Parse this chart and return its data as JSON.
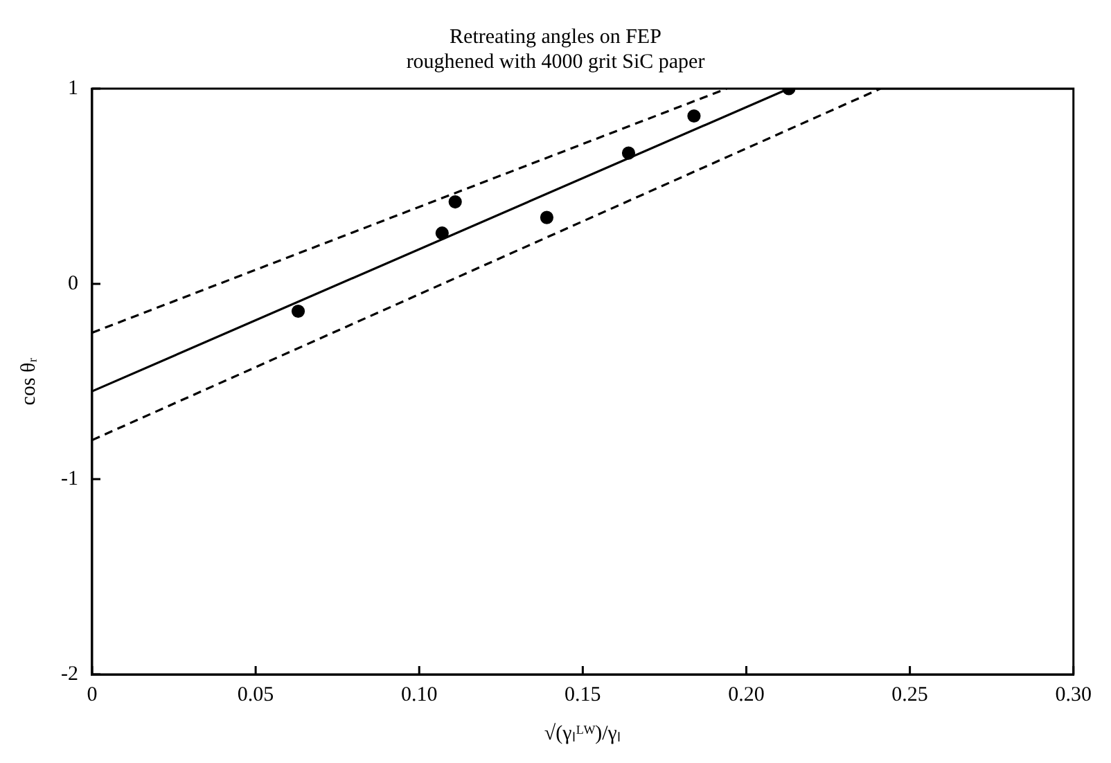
{
  "chart_data": {
    "type": "scatter",
    "title": "Retreating angles on FEP\nroughened with 4000 grit SiC paper",
    "xlabel": "√(γₗᴸᵂ)/γₗ",
    "ylabel": "cos θᵣ",
    "xlim": [
      0,
      0.3
    ],
    "xticks": [
      0,
      0.05,
      {
        "value": 0.1,
        "label": "0.10"
      },
      0.15,
      {
        "value": 0.2,
        "label": "0.20"
      },
      0.25,
      {
        "value": 0.3,
        "label": "0.30"
      }
    ],
    "ylim": [
      -2,
      1
    ],
    "yticks": [
      -2,
      -1,
      0,
      1
    ],
    "grid": false,
    "legend": false,
    "series": [
      {
        "color": "#000000",
        "marker": "circle",
        "x": [
          0.063,
          0.107,
          0.111,
          0.139,
          0.164,
          0.184,
          0.213
        ],
        "values": [
          -0.14,
          0.26,
          0.42,
          0.34,
          0.67,
          0.86,
          1.0
        ]
      },
      {
        "type": "line",
        "color": "#000000",
        "marker": "none",
        "line_style": "solid",
        "x": [
          0,
          0.213,
          0.3
        ],
        "values": [
          -0.55,
          1.0,
          1.0
        ]
      },
      {
        "type": "line",
        "color": "#000000",
        "marker": "none",
        "line_style": "dashed",
        "x": [
          0,
          0.194
        ],
        "values": [
          -0.25,
          1.0
        ]
      },
      {
        "type": "line",
        "color": "#000000",
        "marker": "none",
        "line_style": "dashed",
        "x": [
          0,
          0.241
        ],
        "values": [
          -0.8,
          1.0
        ]
      }
    ]
  }
}
